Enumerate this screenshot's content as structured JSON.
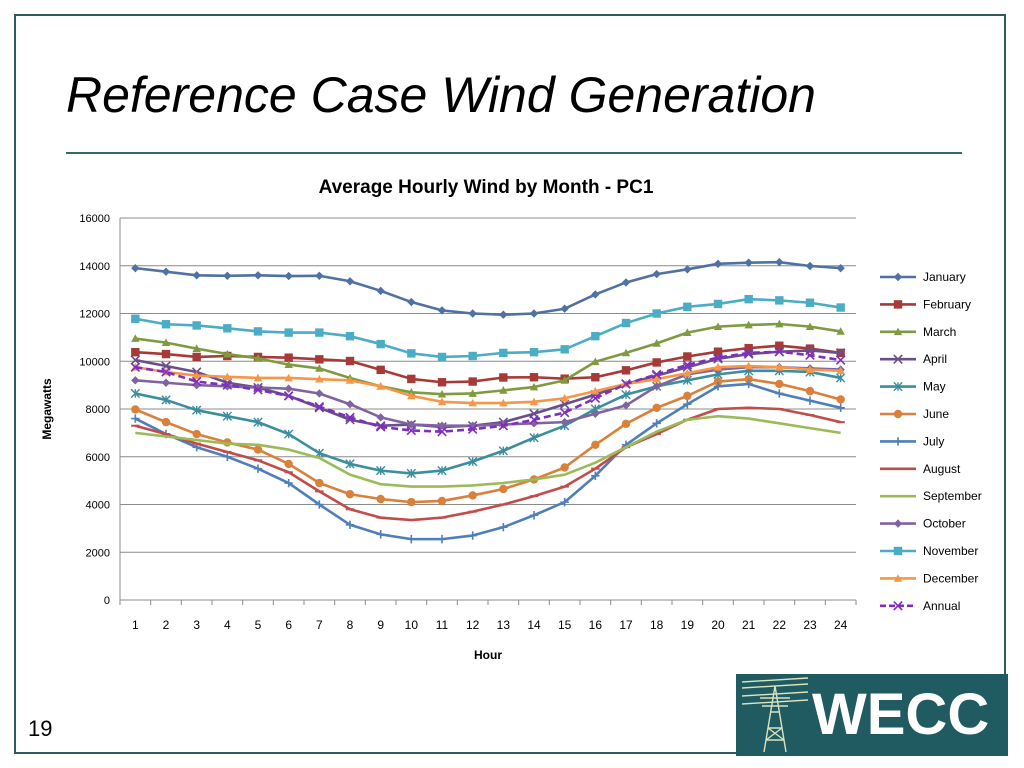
{
  "slide": {
    "title": "Reference Case Wind Generation",
    "page_number": "19",
    "logo_text": "WECC",
    "logo_icon": "transmission-tower-icon"
  },
  "chart_data": {
    "type": "line",
    "title": "Average Hourly Wind by Month - PC1",
    "xlabel": "Hour",
    "ylabel": "Megawatts",
    "ylim": [
      0,
      16000
    ],
    "yticks": [
      0,
      2000,
      4000,
      6000,
      8000,
      10000,
      12000,
      14000,
      16000
    ],
    "grid": "horizontal",
    "legend": "right",
    "x": [
      1,
      2,
      3,
      4,
      5,
      6,
      7,
      8,
      9,
      10,
      11,
      12,
      13,
      14,
      15,
      16,
      17,
      18,
      19,
      20,
      21,
      22,
      23,
      24
    ],
    "series": [
      {
        "name": "January",
        "color": "#4f71a3",
        "marker": "diamond",
        "dash": false,
        "values": [
          13900,
          13750,
          13600,
          13580,
          13600,
          13570,
          13580,
          13350,
          12950,
          12480,
          12130,
          12000,
          11950,
          12000,
          12200,
          12800,
          13300,
          13650,
          13850,
          14080,
          14130,
          14150,
          13990,
          13900
        ]
      },
      {
        "name": "February",
        "color": "#a63a37",
        "marker": "square",
        "dash": false,
        "values": [
          10380,
          10300,
          10180,
          10220,
          10180,
          10150,
          10080,
          10010,
          9640,
          9260,
          9120,
          9150,
          9320,
          9330,
          9270,
          9330,
          9620,
          9950,
          10200,
          10400,
          10550,
          10650,
          10530,
          10350
        ]
      },
      {
        "name": "March",
        "color": "#7f9a3f",
        "marker": "triangle",
        "dash": false,
        "values": [
          10950,
          10780,
          10530,
          10300,
          10120,
          9860,
          9700,
          9300,
          8950,
          8700,
          8620,
          8650,
          8780,
          8920,
          9200,
          9980,
          10350,
          10750,
          11200,
          11450,
          11520,
          11560,
          11450,
          11250
        ]
      },
      {
        "name": "April",
        "color": "#6a4f88",
        "marker": "x",
        "dash": false,
        "values": [
          10050,
          9800,
          9550,
          9100,
          8900,
          8550,
          8050,
          7550,
          7300,
          7350,
          7250,
          7300,
          7450,
          7800,
          8200,
          8600,
          9050,
          9400,
          9750,
          10100,
          10300,
          10400,
          10450,
          10350
        ]
      },
      {
        "name": "May",
        "color": "#3a8e9e",
        "marker": "star",
        "dash": false,
        "values": [
          8650,
          8380,
          7950,
          7700,
          7450,
          6950,
          6150,
          5700,
          5420,
          5300,
          5420,
          5800,
          6250,
          6800,
          7300,
          8000,
          8600,
          8950,
          9200,
          9450,
          9600,
          9600,
          9550,
          9300
        ]
      },
      {
        "name": "June",
        "color": "#d9803a",
        "marker": "circle",
        "dash": false,
        "values": [
          7980,
          7450,
          6950,
          6600,
          6300,
          5700,
          4900,
          4430,
          4230,
          4100,
          4150,
          4380,
          4650,
          5050,
          5550,
          6500,
          7380,
          8050,
          8550,
          9150,
          9250,
          9050,
          8750,
          8400
        ]
      },
      {
        "name": "July",
        "color": "#4f7fba",
        "marker": "plus",
        "dash": false,
        "values": [
          7600,
          6950,
          6400,
          6000,
          5500,
          4900,
          4000,
          3150,
          2750,
          2550,
          2550,
          2700,
          3050,
          3550,
          4100,
          5200,
          6500,
          7400,
          8200,
          8950,
          9050,
          8650,
          8350,
          8050
        ]
      },
      {
        "name": "August",
        "color": "#c04d4a",
        "marker": "dash",
        "dash": false,
        "values": [
          7300,
          6950,
          6550,
          6200,
          5850,
          5350,
          4550,
          3800,
          3450,
          3350,
          3450,
          3700,
          4000,
          4350,
          4750,
          5500,
          6400,
          6950,
          7550,
          8000,
          8050,
          8000,
          7750,
          7450
        ]
      },
      {
        "name": "September",
        "color": "#9bbb59",
        "marker": "none",
        "dash": false,
        "values": [
          7000,
          6850,
          6700,
          6550,
          6500,
          6300,
          5950,
          5250,
          4850,
          4750,
          4750,
          4800,
          4900,
          5050,
          5250,
          5750,
          6400,
          7050,
          7550,
          7700,
          7600,
          7400,
          7200,
          7000
        ]
      },
      {
        "name": "October",
        "color": "#8064a2",
        "marker": "diamond",
        "dash": false,
        "values": [
          9200,
          9100,
          9000,
          8950,
          8900,
          8850,
          8650,
          8200,
          7650,
          7350,
          7300,
          7300,
          7350,
          7400,
          7450,
          7800,
          8150,
          8950,
          9450,
          9650,
          9750,
          9750,
          9700,
          9650
        ]
      },
      {
        "name": "November",
        "color": "#4bacc6",
        "marker": "square",
        "dash": false,
        "values": [
          11780,
          11550,
          11500,
          11380,
          11250,
          11200,
          11200,
          11050,
          10720,
          10330,
          10180,
          10220,
          10350,
          10380,
          10500,
          11050,
          11600,
          12000,
          12280,
          12400,
          12600,
          12550,
          12450,
          12250
        ]
      },
      {
        "name": "December",
        "color": "#f79646",
        "marker": "triangle",
        "dash": false,
        "values": [
          9750,
          9550,
          9400,
          9350,
          9300,
          9300,
          9250,
          9200,
          8950,
          8550,
          8300,
          8250,
          8250,
          8300,
          8450,
          8750,
          9050,
          9250,
          9500,
          9750,
          9800,
          9750,
          9650,
          9600
        ]
      },
      {
        "name": "Annual",
        "color": "#7f2fbf",
        "marker": "x",
        "dash": true,
        "values": [
          9750,
          9550,
          9150,
          9000,
          8800,
          8550,
          8100,
          7650,
          7250,
          7100,
          7050,
          7150,
          7300,
          7550,
          7850,
          8450,
          9050,
          9450,
          9850,
          10150,
          10350,
          10400,
          10250,
          10050
        ]
      }
    ]
  }
}
